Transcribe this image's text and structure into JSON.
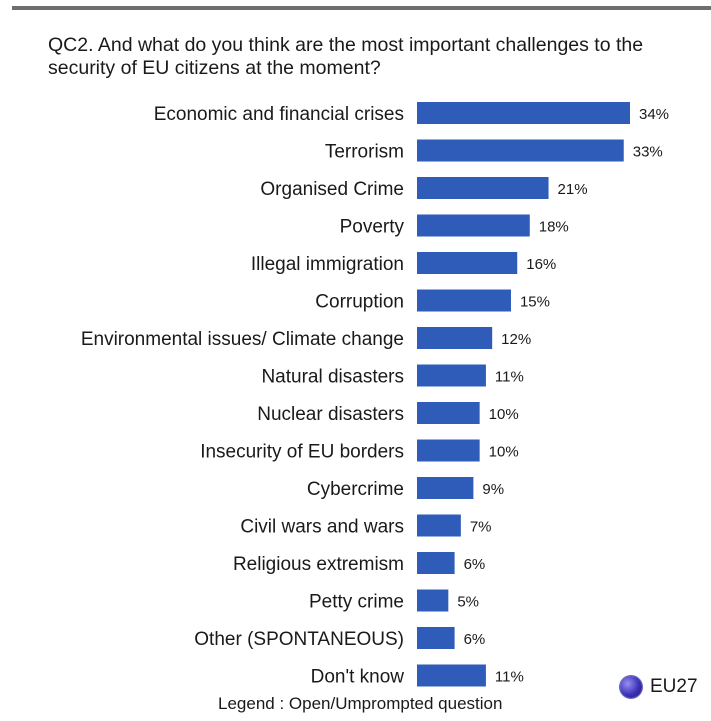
{
  "question": "QC2. And what do you think are the most important challenges to the security of EU citizens at the moment?",
  "legend": {
    "series_label": "EU27",
    "color": "#2e5cb8"
  },
  "footnote": "Legend : Open/Umprompted question",
  "chart_data": {
    "type": "bar",
    "orientation": "horizontal",
    "title": "QC2. And what do you think are the most important challenges to the security of EU citizens at the moment?",
    "categories": [
      "Economic and financial crises",
      "Terrorism",
      "Organised Crime",
      "Poverty",
      "Illegal immigration",
      "Corruption",
      "Environmental issues/ Climate change",
      "Natural disasters",
      "Nuclear disasters",
      "Insecurity of EU borders",
      "Cybercrime",
      "Civil wars and wars",
      "Religious extremism",
      "Petty crime",
      "Other (SPONTANEOUS)",
      "Don't know"
    ],
    "series": [
      {
        "name": "EU27",
        "values": [
          34,
          33,
          21,
          18,
          16,
          15,
          12,
          11,
          10,
          10,
          9,
          7,
          6,
          5,
          6,
          11
        ],
        "labels": [
          "34%",
          "33%",
          "21%",
          "18%",
          "16%",
          "15%",
          "12%",
          "11%",
          "10%",
          "10%",
          "9%",
          "7%",
          "6%",
          "5%",
          "6%",
          "11%"
        ],
        "color": "#2e5cb8"
      }
    ],
    "unit": "%",
    "xlim": [
      0,
      34
    ],
    "grid": false,
    "legend_position": "bottom-right"
  }
}
